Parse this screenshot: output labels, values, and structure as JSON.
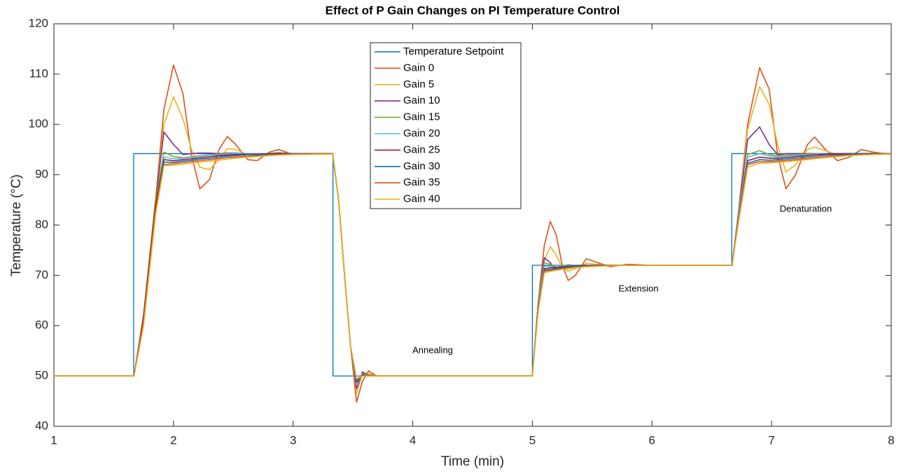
{
  "chart_data": {
    "type": "line",
    "title": "Effect of P Gain Changes on PI Temperature Control",
    "x_label": "Time (min)",
    "y_label": "Temperature (°C)",
    "xlim": [
      1,
      8
    ],
    "ylim": [
      40,
      120
    ],
    "xticks": [
      1,
      2,
      3,
      4,
      5,
      6,
      7,
      8
    ],
    "yticks": [
      40,
      50,
      60,
      70,
      80,
      90,
      100,
      110,
      120
    ],
    "grid": false,
    "legend": "north",
    "annotations": [
      "Annealing",
      "Extension",
      "Denaturation"
    ],
    "x": [
      1,
      1.67,
      1.75,
      1.85,
      1.92,
      2.0,
      2.08,
      2.15,
      2.22,
      2.3,
      2.38,
      2.45,
      2.52,
      2.62,
      2.7,
      2.8,
      2.88,
      3.0,
      3.33,
      3.38,
      3.43,
      3.48,
      3.53,
      3.58,
      3.63,
      3.7,
      5.0,
      5.05,
      5.1,
      5.15,
      5.2,
      5.25,
      5.3,
      5.36,
      5.45,
      5.55,
      5.65,
      5.8,
      6.0,
      6.67,
      6.72,
      6.8,
      6.9,
      6.98,
      7.05,
      7.12,
      7.2,
      7.3,
      7.36,
      7.45,
      7.55,
      7.65,
      7.75,
      7.85,
      8
    ],
    "series": [
      {
        "name": "Temperature Setpoint",
        "color": "#0072bd",
        "x": [
          1,
          1.667,
          1.667,
          3.333,
          3.333,
          5,
          5,
          6.667,
          6.667,
          8
        ],
        "values": [
          50,
          50,
          94.2,
          94.2,
          50,
          50,
          72,
          72,
          94.2,
          94.2
        ]
      },
      {
        "name": "Gain 0",
        "color": "#d95319",
        "values": [
          50,
          50,
          62,
          85,
          103,
          111.8,
          106,
          94,
          87.2,
          89,
          95,
          97.6,
          96,
          93,
          92.8,
          94.5,
          95,
          94,
          94.2,
          85,
          70,
          56,
          44.8,
          49,
          51,
          50,
          50,
          65,
          76,
          80.7,
          78,
          72,
          69,
          70,
          73.3,
          72.5,
          71.7,
          72.2,
          72,
          72,
          82,
          100,
          111.3,
          107,
          94,
          87.2,
          90,
          96,
          97.5,
          95,
          92.8,
          93.5,
          95,
          94.5,
          94
        ]
      },
      {
        "name": "Gain 5",
        "color": "#edb120",
        "values": [
          50,
          50,
          62,
          85,
          100,
          105.5,
          101,
          95,
          91.5,
          91,
          93,
          95.2,
          95,
          94,
          93.8,
          94.3,
          94.4,
          94.2,
          94.2,
          85,
          70,
          56,
          46.5,
          50.5,
          50.5,
          50,
          50,
          65,
          73,
          75.7,
          74,
          71.5,
          70.8,
          71.3,
          72.4,
          72.2,
          71.9,
          72,
          72,
          72,
          82,
          99,
          107.5,
          104,
          96,
          90.5,
          92,
          95,
          95.5,
          94.8,
          94,
          94,
          94.2,
          94.3,
          94.2
        ]
      },
      {
        "name": "Gain 10",
        "color": "#7e2f8e",
        "values": [
          50,
          50,
          62,
          85,
          98.5,
          96,
          94,
          94.2,
          94.3,
          94.3,
          94.2,
          94.3,
          94.3,
          94.2,
          94.2,
          94.2,
          94.3,
          94.2,
          94.2,
          85,
          70,
          56,
          47.5,
          50.8,
          50.2,
          50,
          50,
          65,
          73.5,
          72.5,
          71,
          71.8,
          72.1,
          72,
          72,
          72,
          72,
          72,
          72,
          72,
          82,
          97,
          99.5,
          96,
          94,
          94.2,
          94.2,
          94.2,
          94.2,
          94.2,
          94.2,
          94.2,
          94.2,
          94.2,
          94.2
        ]
      },
      {
        "name": "Gain 15",
        "color": "#77ac30",
        "values": [
          50,
          50,
          62,
          85,
          94.5,
          93.6,
          93.4,
          93.6,
          93.8,
          94,
          94.1,
          94.2,
          94.2,
          94.2,
          94.2,
          94.2,
          94.2,
          94.2,
          94.2,
          85,
          70,
          56,
          48.5,
          50.5,
          50.1,
          50,
          50,
          65,
          72.5,
          72.2,
          71.6,
          71.9,
          72,
          72,
          72,
          72,
          72,
          72,
          72,
          72,
          82,
          94,
          94.8,
          94,
          93.8,
          93.9,
          94,
          94.1,
          94.2,
          94.2,
          94.2,
          94.2,
          94.2,
          94.2,
          94.2
        ]
      },
      {
        "name": "Gain 20",
        "color": "#4dbeee",
        "values": [
          50,
          50,
          62,
          84,
          93.5,
          93.2,
          93.3,
          93.5,
          93.7,
          93.9,
          94,
          94.1,
          94.2,
          94.2,
          94.2,
          94.2,
          94.2,
          94.2,
          94.2,
          85,
          70,
          56,
          48.5,
          50.3,
          50,
          50,
          50,
          65,
          71.8,
          71.8,
          71.6,
          71.8,
          71.9,
          72,
          72,
          72,
          72,
          72,
          72,
          72,
          82,
          93.5,
          94.2,
          93.7,
          93.6,
          93.7,
          93.8,
          94,
          94.1,
          94.2,
          94.2,
          94.2,
          94.2,
          94.2,
          94.2
        ]
      },
      {
        "name": "Gain 25",
        "color": "#a2142f",
        "values": [
          50,
          50,
          62,
          84,
          93,
          92.8,
          93,
          93.2,
          93.4,
          93.6,
          93.8,
          93.9,
          94,
          94.1,
          94.1,
          94.2,
          94.2,
          94.2,
          94.2,
          85,
          70,
          56,
          48.8,
          50.2,
          50,
          50,
          50,
          64,
          71.3,
          71.5,
          71.6,
          71.7,
          71.8,
          71.9,
          72,
          72,
          72,
          72,
          72,
          72,
          81,
          92.8,
          93.5,
          93.3,
          93.3,
          93.4,
          93.6,
          93.8,
          94,
          94.1,
          94.2,
          94.2,
          94.2,
          94.2,
          94.2
        ]
      },
      {
        "name": "Gain 30",
        "color": "#0072bd",
        "values": [
          50,
          50,
          61,
          83,
          92.5,
          92.5,
          92.7,
          92.9,
          93.1,
          93.3,
          93.5,
          93.7,
          93.8,
          94,
          94,
          94.1,
          94.1,
          94.2,
          94.2,
          85,
          70,
          56,
          49,
          50.1,
          50,
          50,
          50,
          64,
          71,
          71.2,
          71.4,
          71.5,
          71.7,
          71.8,
          71.9,
          72,
          72,
          72,
          72,
          72,
          81,
          92.3,
          93,
          92.9,
          93,
          93.1,
          93.3,
          93.5,
          93.7,
          93.9,
          94,
          94.1,
          94.2,
          94.2,
          94.2
        ]
      },
      {
        "name": "Gain 35",
        "color": "#d95319",
        "values": [
          50,
          50,
          61,
          83,
          92,
          92.2,
          92.4,
          92.6,
          92.8,
          93,
          93.2,
          93.4,
          93.5,
          93.7,
          93.8,
          93.9,
          94,
          94.1,
          94.2,
          85,
          70,
          56,
          49.3,
          50,
          50,
          50,
          50,
          64,
          70.8,
          71,
          71.2,
          71.3,
          71.5,
          71.6,
          71.8,
          71.9,
          72,
          72,
          72,
          72,
          81,
          92,
          92.6,
          92.6,
          92.7,
          92.8,
          93,
          93.2,
          93.4,
          93.6,
          93.8,
          93.9,
          94,
          94.1,
          94.2
        ]
      },
      {
        "name": "Gain 40",
        "color": "#edb120",
        "values": [
          50,
          50,
          60,
          82,
          91.8,
          91.9,
          92.1,
          92.3,
          92.5,
          92.7,
          92.9,
          93.1,
          93.3,
          93.5,
          93.6,
          93.8,
          93.9,
          94,
          94.1,
          85,
          70,
          56,
          49.5,
          50,
          50,
          50,
          50,
          63,
          70.5,
          70.8,
          71,
          71.2,
          71.3,
          71.5,
          71.7,
          71.8,
          71.9,
          72,
          72,
          72,
          80,
          91.5,
          92.3,
          92.3,
          92.5,
          92.6,
          92.8,
          93,
          93.2,
          93.4,
          93.6,
          93.8,
          93.9,
          94,
          94.1
        ]
      }
    ]
  }
}
